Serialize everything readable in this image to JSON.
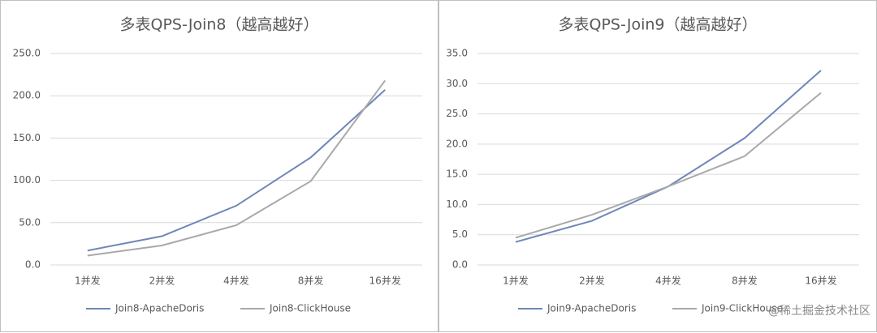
{
  "chart_data": [
    {
      "type": "line",
      "title": "多表QPS-Join8（越高越好）",
      "categories": [
        "1并发",
        "2并发",
        "4并发",
        "8并发",
        "16并发"
      ],
      "series": [
        {
          "name": "Join8-ApacheDoris",
          "color": "#6f86b8",
          "values": [
            17,
            34,
            70,
            127,
            207
          ]
        },
        {
          "name": "Join8-ClickHouse",
          "color": "#a9a9a9",
          "values": [
            11,
            23,
            47,
            99,
            218
          ]
        }
      ],
      "ylim": [
        0,
        250
      ],
      "yticks": [
        {
          "value": 0,
          "label": "0.0"
        },
        {
          "value": 50,
          "label": "50.0"
        },
        {
          "value": 100,
          "label": "100.0"
        },
        {
          "value": 150,
          "label": "150.0"
        },
        {
          "value": 200,
          "label": "200.0"
        },
        {
          "value": 250,
          "label": "250.0"
        }
      ],
      "grid": true,
      "legend": "bottom"
    },
    {
      "type": "line",
      "title": "多表QPS-Join9（越高越好）",
      "categories": [
        "1并发",
        "2并发",
        "4并发",
        "8并发",
        "16并发"
      ],
      "series": [
        {
          "name": "Join9-ApacheDoris",
          "color": "#6f86b8",
          "values": [
            3.8,
            7.3,
            13,
            21,
            32.2
          ]
        },
        {
          "name": "Join9-ClickHouse",
          "color": "#a9a9a9",
          "values": [
            4.5,
            8.3,
            13,
            18,
            28.5
          ]
        }
      ],
      "ylim": [
        0,
        35
      ],
      "yticks": [
        {
          "value": 0,
          "label": "0.0"
        },
        {
          "value": 5,
          "label": "5.0"
        },
        {
          "value": 10,
          "label": "10.0"
        },
        {
          "value": 15,
          "label": "15.0"
        },
        {
          "value": 20,
          "label": "20.0"
        },
        {
          "value": 25,
          "label": "25.0"
        },
        {
          "value": 30,
          "label": "30.0"
        },
        {
          "value": 35,
          "label": "35.0"
        }
      ],
      "grid": true,
      "legend": "bottom"
    }
  ],
  "watermark": "@稀土掘金技术社区"
}
